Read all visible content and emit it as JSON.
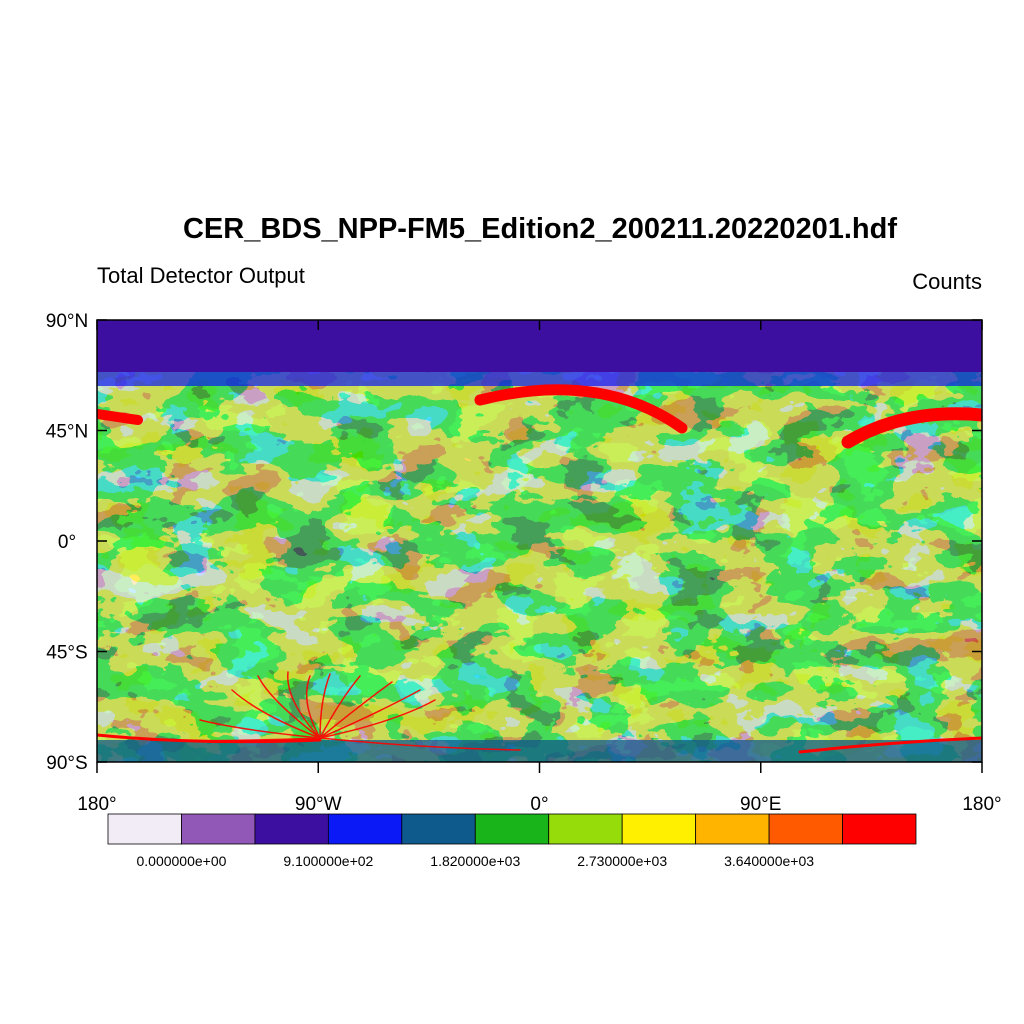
{
  "title": "CER_BDS_NPP-FM5_Edition2_200211.20220201.hdf",
  "left_subtitle": "Total Detector Output",
  "right_subtitle": "Counts",
  "chart_data": {
    "type": "heatmap",
    "projection": "cylindrical-equidistant",
    "x_range": [
      -180,
      180
    ],
    "y_range": [
      -90,
      90
    ],
    "lat_ticks": [
      {
        "value": 90,
        "label": "90°N"
      },
      {
        "value": 45,
        "label": "45°N"
      },
      {
        "value": 0,
        "label": "0°"
      },
      {
        "value": -45,
        "label": "45°S"
      },
      {
        "value": -90,
        "label": "90°S"
      }
    ],
    "lon_ticks": [
      {
        "value": -180,
        "label": "180°"
      },
      {
        "value": -90,
        "label": "90°W"
      },
      {
        "value": 0,
        "label": "0°"
      },
      {
        "value": 90,
        "label": "90°E"
      },
      {
        "value": 180,
        "label": "180°"
      }
    ],
    "colorbar": {
      "colors": [
        "#f2ecf6",
        "#9158b8",
        "#3c0fa0",
        "#0a19f5",
        "#0f5a8c",
        "#19b419",
        "#96dc0a",
        "#fff000",
        "#ffb400",
        "#ff5a00",
        "#ff0000"
      ],
      "labels": [
        {
          "boundary": 1,
          "text": "0.000000e+00"
        },
        {
          "boundary": 3,
          "text": "9.100000e+02"
        },
        {
          "boundary": 5,
          "text": "1.820000e+03"
        },
        {
          "boundary": 7,
          "text": "2.730000e+03"
        },
        {
          "boundary": 9,
          "text": "3.640000e+03"
        }
      ]
    }
  }
}
